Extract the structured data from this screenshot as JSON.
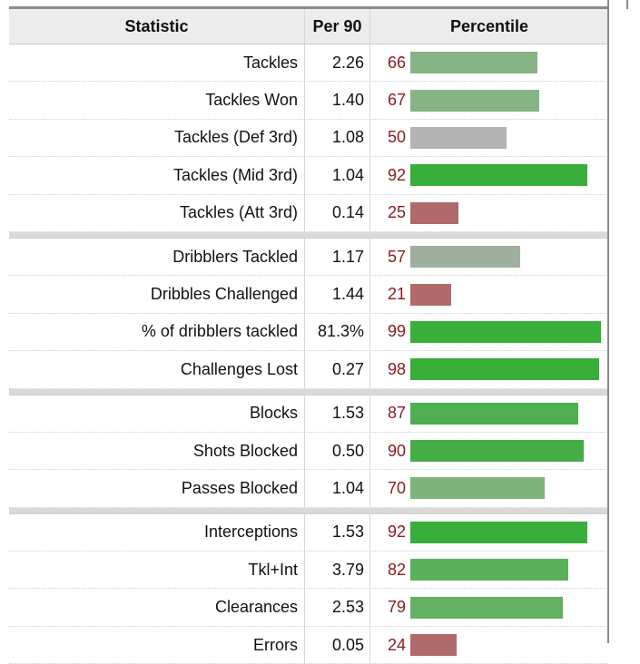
{
  "headers": {
    "statistic": "Statistic",
    "per90": "Per 90",
    "percentile": "Percentile"
  },
  "groups": [
    {
      "rows": [
        {
          "label": "Tackles",
          "per90": "2.26",
          "pct": "66",
          "color": "#86b485"
        },
        {
          "label": "Tackles Won",
          "per90": "1.40",
          "pct": "67",
          "color": "#86b485"
        },
        {
          "label": "Tackles (Def 3rd)",
          "per90": "1.08",
          "pct": "50",
          "color": "#b3b3b3"
        },
        {
          "label": "Tackles (Mid 3rd)",
          "per90": "1.04",
          "pct": "92",
          "color": "#3aae3a"
        },
        {
          "label": "Tackles (Att 3rd)",
          "per90": "0.14",
          "pct": "25",
          "color": "#b06a6a"
        }
      ]
    },
    {
      "rows": [
        {
          "label": "Dribblers Tackled",
          "per90": "1.17",
          "pct": "57",
          "color": "#9eb09d"
        },
        {
          "label": "Dribbles Challenged",
          "per90": "1.44",
          "pct": "21",
          "color": "#b06a6a"
        },
        {
          "label": "% of dribblers tackled",
          "per90": "81.3%",
          "pct": "99",
          "color": "#38af38"
        },
        {
          "label": "Challenges Lost",
          "per90": "0.27",
          "pct": "98",
          "color": "#38af38"
        }
      ]
    },
    {
      "rows": [
        {
          "label": "Blocks",
          "per90": "1.53",
          "pct": "87",
          "color": "#4fae4f"
        },
        {
          "label": "Shots Blocked",
          "per90": "0.50",
          "pct": "90",
          "color": "#44ae44"
        },
        {
          "label": "Passes Blocked",
          "per90": "1.04",
          "pct": "70",
          "color": "#7fb37e"
        }
      ]
    },
    {
      "rows": [
        {
          "label": "Interceptions",
          "per90": "1.53",
          "pct": "92",
          "color": "#3aae3a"
        },
        {
          "label": "Tkl+Int",
          "per90": "3.79",
          "pct": "82",
          "color": "#5bb05b"
        },
        {
          "label": "Clearances",
          "per90": "2.53",
          "pct": "79",
          "color": "#64b163"
        },
        {
          "label": "Errors",
          "per90": "0.05",
          "pct": "24",
          "color": "#b06a6a"
        }
      ]
    }
  ]
}
